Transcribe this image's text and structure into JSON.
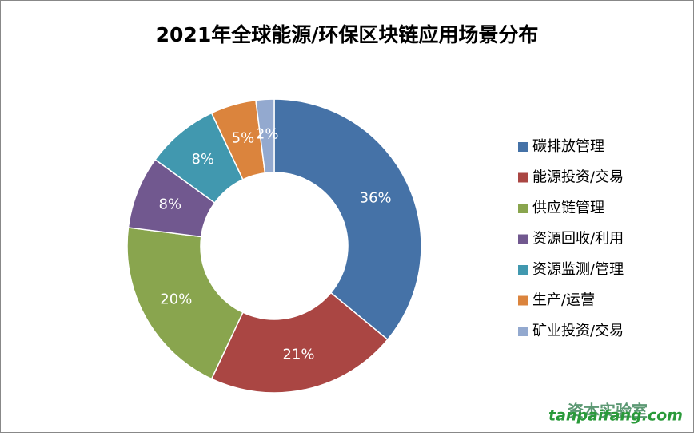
{
  "chart_data": {
    "type": "donut",
    "title": "2021年全球能源/环保区块链应用场景分布",
    "categories": [
      "碳排放管理",
      "能源投资/交易",
      "供应链管理",
      "资源回收/利用",
      "资源监测/管理",
      "生产/运营",
      "矿业投资/交易"
    ],
    "values": [
      36,
      21,
      20,
      8,
      8,
      5,
      2
    ],
    "value_labels": [
      "36%",
      "21%",
      "20%",
      "8%",
      "8%",
      "5%",
      "2%"
    ],
    "colors": [
      "#4572a7",
      "#aa4643",
      "#89a54e",
      "#71588f",
      "#4198af",
      "#db843d",
      "#93a9cf"
    ],
    "legend": "right",
    "watermark": [
      "资本实验室",
      "tanpaifang.com"
    ]
  }
}
